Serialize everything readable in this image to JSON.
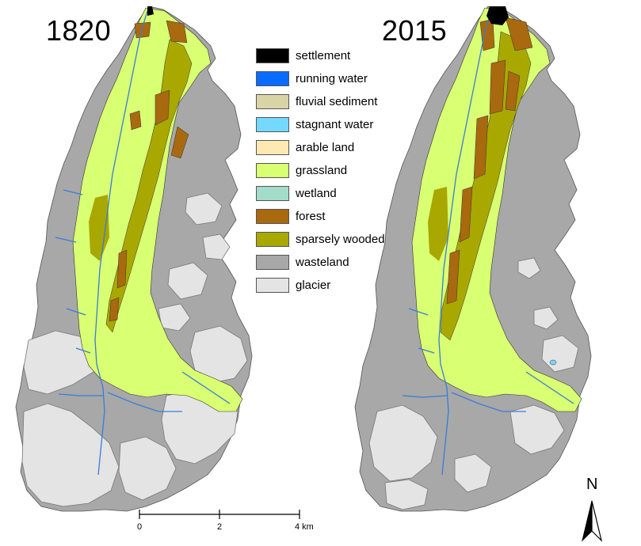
{
  "panels": [
    {
      "year": "1820"
    },
    {
      "year": "2015"
    }
  ],
  "legend": [
    {
      "label": "settlement",
      "color": "#000000"
    },
    {
      "label": "running water",
      "color": "#0a6cff"
    },
    {
      "label": "fluvial sediment",
      "color": "#d9d3a6"
    },
    {
      "label": "stagnant water",
      "color": "#73d9ff"
    },
    {
      "label": "arable land",
      "color": "#ffe9b3"
    },
    {
      "label": "grassland",
      "color": "#d9ff73"
    },
    {
      "label": "wetland",
      "color": "#a3dcc8"
    },
    {
      "label": "forest",
      "color": "#a8690f"
    },
    {
      "label": "sparsely wooded",
      "color": "#a8a800"
    },
    {
      "label": "wasteland",
      "color": "#a8a8a8"
    },
    {
      "label": "glacier",
      "color": "#e4e4e4"
    }
  ],
  "scale_bar": {
    "ticks": [
      "0",
      "2",
      "4 km"
    ]
  },
  "north_arrow": {
    "label": "N"
  },
  "icons": {
    "north": "north-arrow-icon"
  }
}
